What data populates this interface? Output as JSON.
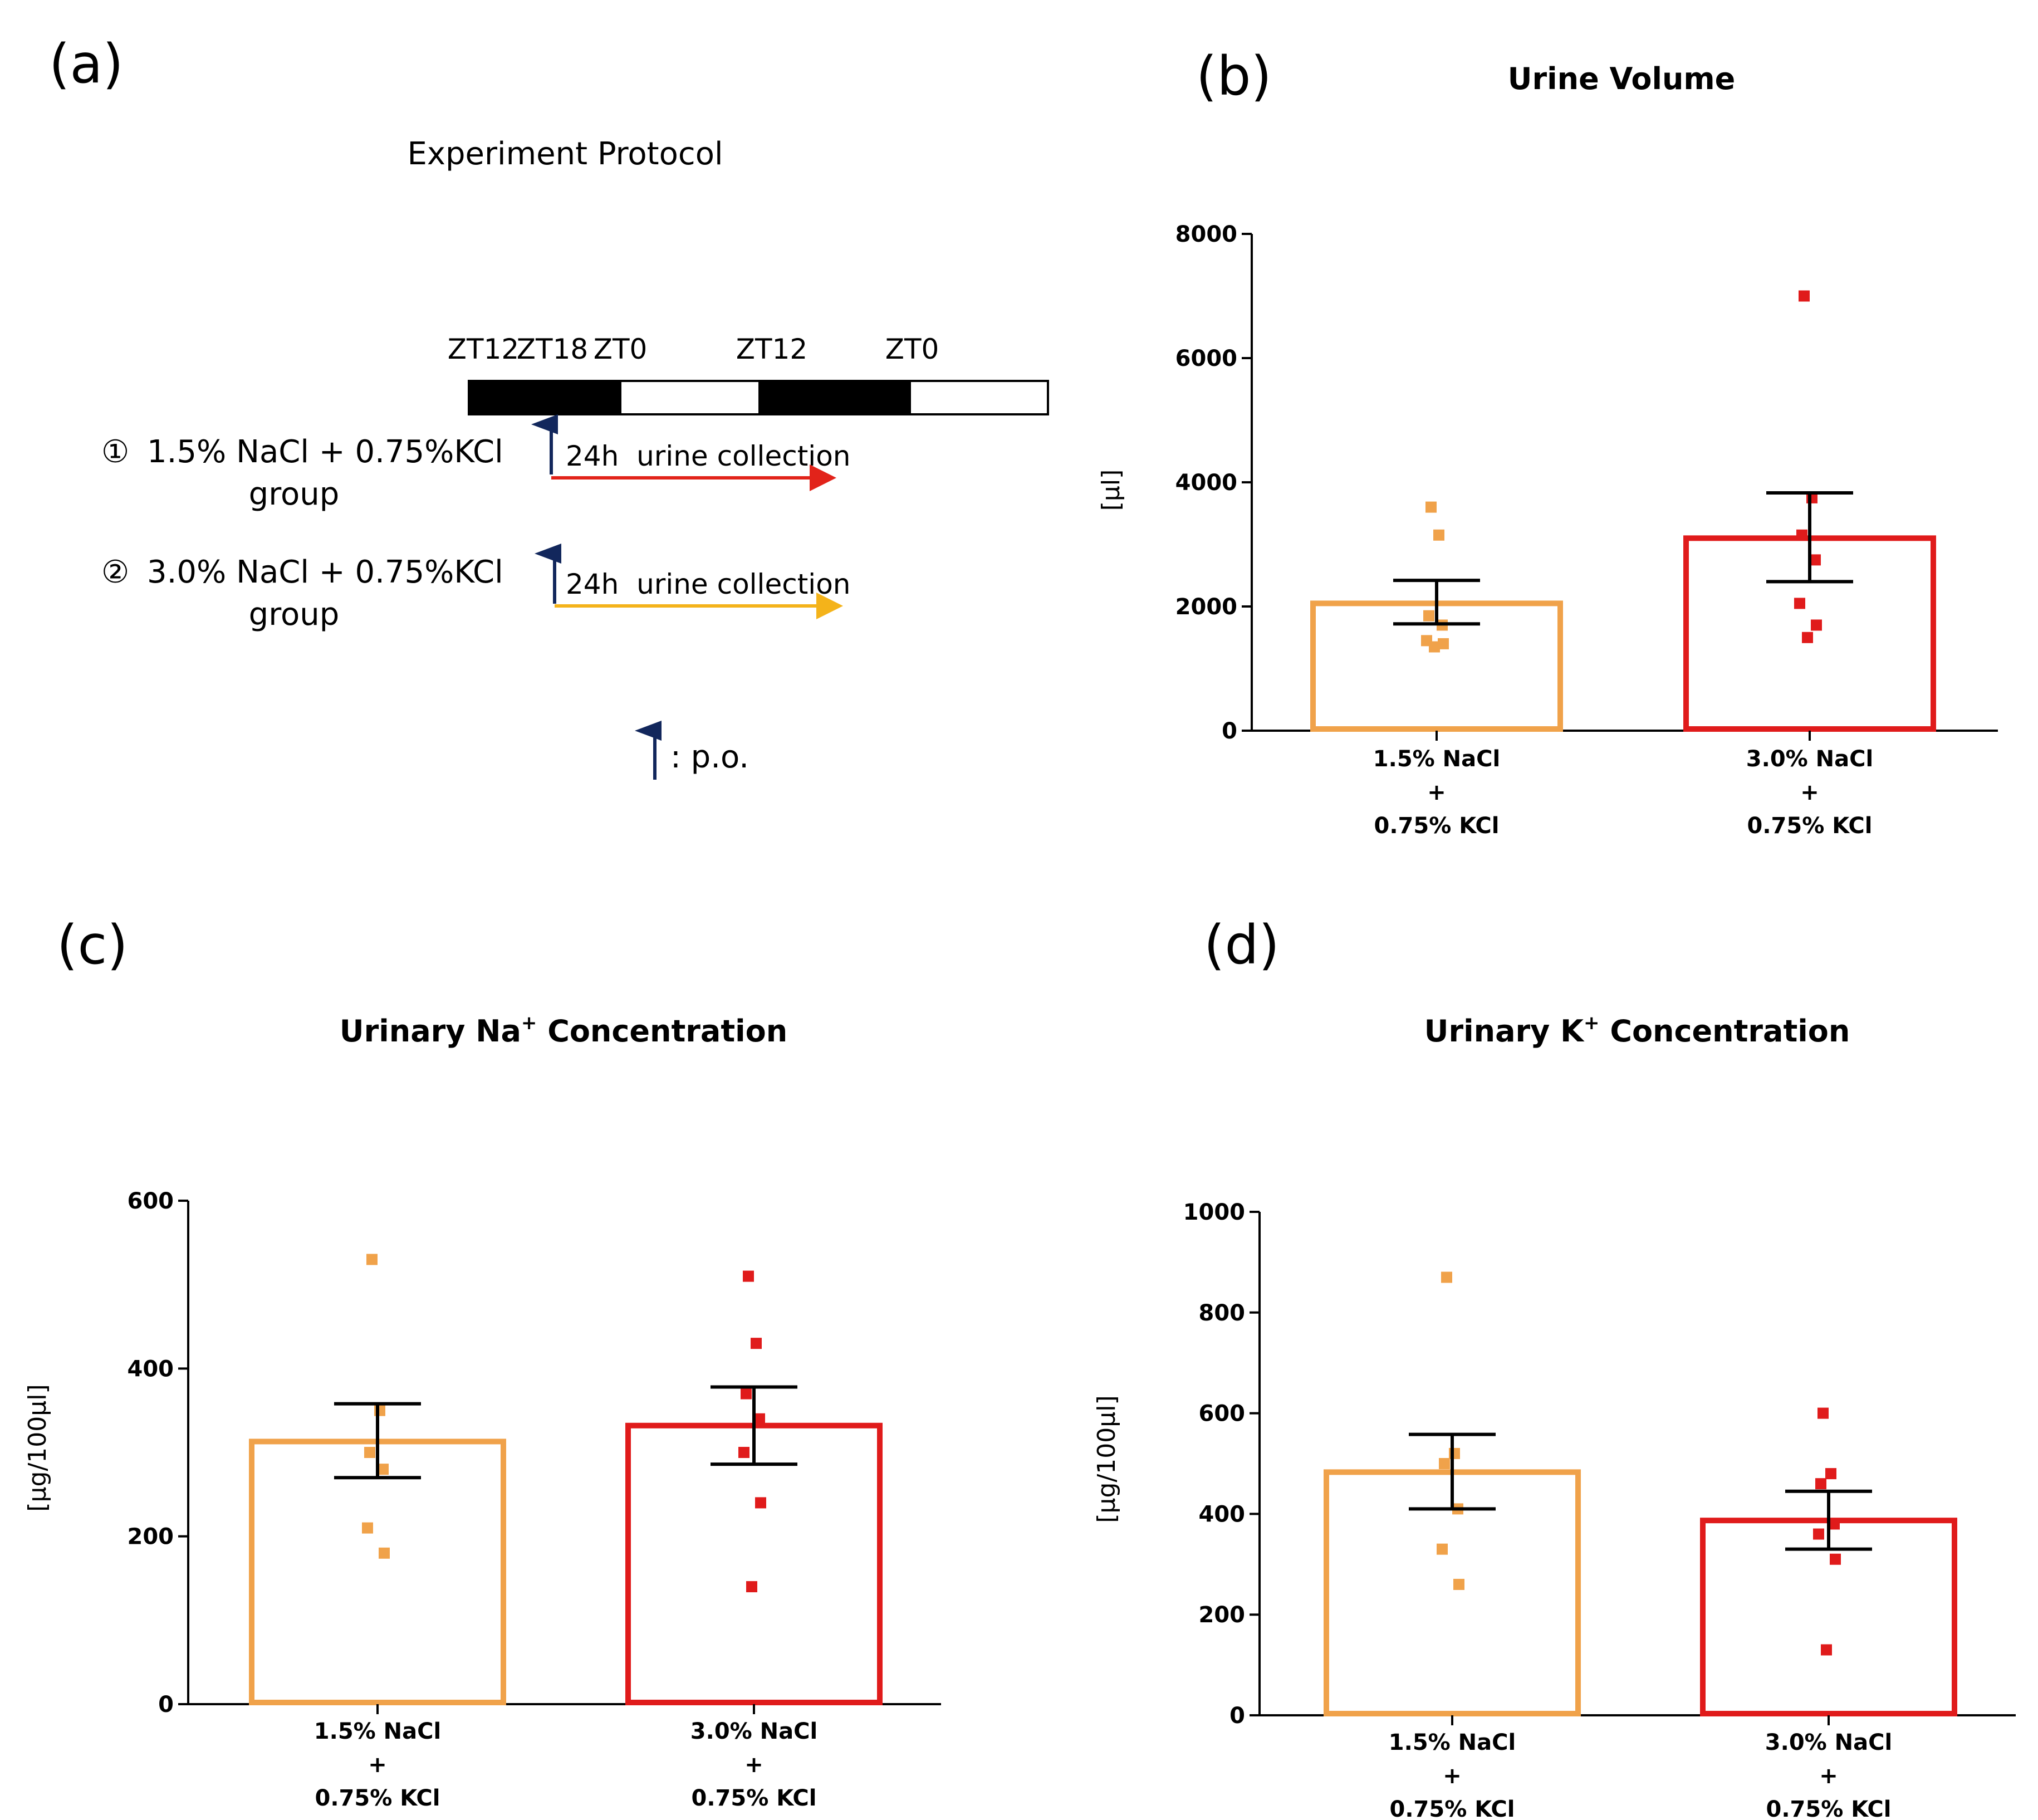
{
  "panel_labels": [
    "(a)",
    "(b)",
    "(c)",
    "(d)"
  ],
  "protocol": {
    "title": "Experiment Protocol",
    "zt_labels": [
      "ZT12",
      "ZT18",
      "ZT0",
      "ZT12",
      "ZT0"
    ],
    "groups": [
      {
        "num": "①",
        "label": "1.5% NaCl + 0.75%KCl",
        "label2": "group",
        "color": "#e2231a"
      },
      {
        "num": "②",
        "label": "3.0% NaCl + 0.75%KCl",
        "label2": "group",
        "color": "#f4b31a"
      }
    ],
    "collection_label": "24h  urine collection",
    "legend_label": ": p.o.",
    "arrow_color": "#12275c"
  },
  "colors": {
    "group1": "#f0a24a",
    "group2": "#e01b1b"
  },
  "chart_data": [
    {
      "id": "b",
      "type": "bar",
      "title": "Urine Volume",
      "title_parts": [
        "Urine Volume",
        "",
        ""
      ],
      "ylabel": "[μl]",
      "ylim": [
        0,
        8000
      ],
      "yticks": [
        0,
        2000,
        4000,
        6000,
        8000
      ],
      "categories": [
        [
          "1.5% NaCl",
          "+",
          "0.75% KCl"
        ],
        [
          "3.0% NaCl",
          "+",
          "0.75% KCl"
        ]
      ],
      "means": [
        2050,
        3100
      ],
      "errors": [
        [
          1720,
          2420
        ],
        [
          2400,
          3830
        ]
      ],
      "points": [
        [
          3600,
          3150,
          1850,
          1700,
          1450,
          1400,
          1350
        ],
        [
          7000,
          3750,
          3150,
          2750,
          2050,
          1700,
          1500
        ]
      ]
    },
    {
      "id": "c",
      "type": "bar",
      "title": "Urinary Na+ Concentration",
      "title_parts": [
        "Urinary Na",
        "+",
        " Concentration"
      ],
      "ylabel": "[μg/100μl]",
      "ylim": [
        0,
        600
      ],
      "yticks": [
        0,
        200,
        400,
        600
      ],
      "categories": [
        [
          "1.5% NaCl",
          "+",
          "0.75% KCl"
        ],
        [
          "3.0% NaCl",
          "+",
          "0.75% KCl"
        ]
      ],
      "means": [
        313,
        332
      ],
      "errors": [
        [
          270,
          358
        ],
        [
          286,
          378
        ]
      ],
      "points": [
        [
          530,
          350,
          300,
          280,
          210,
          180
        ],
        [
          510,
          430,
          370,
          340,
          300,
          240,
          140
        ]
      ]
    },
    {
      "id": "d",
      "type": "bar",
      "title": "Urinary K+ Concentration",
      "title_parts": [
        "Urinary K",
        "+",
        " Concentration"
      ],
      "ylabel": "[μg/100μl]",
      "ylim": [
        0,
        1000
      ],
      "yticks": [
        0,
        200,
        400,
        600,
        800,
        1000
      ],
      "categories": [
        [
          "1.5% NaCl",
          "+",
          "0.75% KCl"
        ],
        [
          "3.0% NaCl",
          "+",
          "0.75% KCl"
        ]
      ],
      "means": [
        483,
        387
      ],
      "errors": [
        [
          410,
          558
        ],
        [
          330,
          445
        ]
      ],
      "points": [
        [
          870,
          520,
          500,
          410,
          330,
          260
        ],
        [
          600,
          480,
          460,
          380,
          360,
          310,
          130
        ]
      ]
    }
  ]
}
